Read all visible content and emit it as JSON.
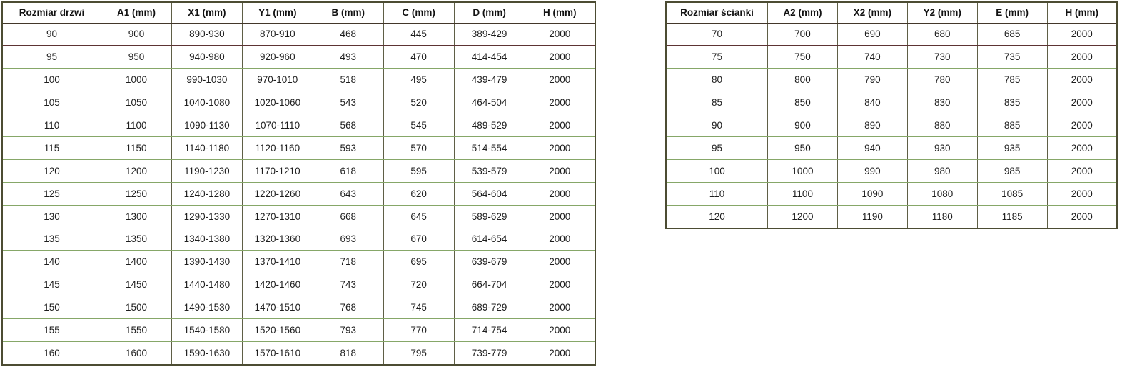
{
  "chart_data": [
    {
      "type": "table",
      "name": "door-dimensions",
      "columns": [
        "Rozmiar drzwi",
        "A1 (mm)",
        "X1 (mm)",
        "Y1 (mm)",
        "B (mm)",
        "C (mm)",
        "D (mm)",
        "H (mm)"
      ],
      "rows": [
        [
          "90",
          "900",
          "890-930",
          "870-910",
          "468",
          "445",
          "389-429",
          "2000"
        ],
        [
          "95",
          "950",
          "940-980",
          "920-960",
          "493",
          "470",
          "414-454",
          "2000"
        ],
        [
          "100",
          "1000",
          "990-1030",
          "970-1010",
          "518",
          "495",
          "439-479",
          "2000"
        ],
        [
          "105",
          "1050",
          "1040-1080",
          "1020-1060",
          "543",
          "520",
          "464-504",
          "2000"
        ],
        [
          "110",
          "1100",
          "1090-1130",
          "1070-1110",
          "568",
          "545",
          "489-529",
          "2000"
        ],
        [
          "115",
          "1150",
          "1140-1180",
          "1120-1160",
          "593",
          "570",
          "514-554",
          "2000"
        ],
        [
          "120",
          "1200",
          "1190-1230",
          "1170-1210",
          "618",
          "595",
          "539-579",
          "2000"
        ],
        [
          "125",
          "1250",
          "1240-1280",
          "1220-1260",
          "643",
          "620",
          "564-604",
          "2000"
        ],
        [
          "130",
          "1300",
          "1290-1330",
          "1270-1310",
          "668",
          "645",
          "589-629",
          "2000"
        ],
        [
          "135",
          "1350",
          "1340-1380",
          "1320-1360",
          "693",
          "670",
          "614-654",
          "2000"
        ],
        [
          "140",
          "1400",
          "1390-1430",
          "1370-1410",
          "718",
          "695",
          "639-679",
          "2000"
        ],
        [
          "145",
          "1450",
          "1440-1480",
          "1420-1460",
          "743",
          "720",
          "664-704",
          "2000"
        ],
        [
          "150",
          "1500",
          "1490-1530",
          "1470-1510",
          "768",
          "745",
          "689-729",
          "2000"
        ],
        [
          "155",
          "1550",
          "1540-1580",
          "1520-1560",
          "793",
          "770",
          "714-754",
          "2000"
        ],
        [
          "160",
          "1600",
          "1590-1630",
          "1570-1610",
          "818",
          "795",
          "739-779",
          "2000"
        ]
      ]
    },
    {
      "type": "table",
      "name": "wall-dimensions",
      "columns": [
        "Rozmiar ścianki",
        "A2 (mm)",
        "X2 (mm)",
        "Y2 (mm)",
        "E (mm)",
        "H (mm)"
      ],
      "rows": [
        [
          "70",
          "700",
          "690",
          "680",
          "685",
          "2000"
        ],
        [
          "75",
          "750",
          "740",
          "730",
          "735",
          "2000"
        ],
        [
          "80",
          "800",
          "790",
          "780",
          "785",
          "2000"
        ],
        [
          "85",
          "850",
          "840",
          "830",
          "835",
          "2000"
        ],
        [
          "90",
          "900",
          "890",
          "880",
          "885",
          "2000"
        ],
        [
          "95",
          "950",
          "940",
          "930",
          "935",
          "2000"
        ],
        [
          "100",
          "1000",
          "990",
          "980",
          "985",
          "2000"
        ],
        [
          "110",
          "1100",
          "1090",
          "1080",
          "1085",
          "2000"
        ],
        [
          "120",
          "1200",
          "1190",
          "1180",
          "1185",
          "2000"
        ]
      ]
    }
  ],
  "colors": {
    "row_border_green": "#86a768",
    "first_row_border_maroon": "#5d3434",
    "vertical_border_olive": "#5f5f46",
    "outer_border": "#4c4c33",
    "text": "#1e1e1e",
    "background": "#ffffff"
  }
}
